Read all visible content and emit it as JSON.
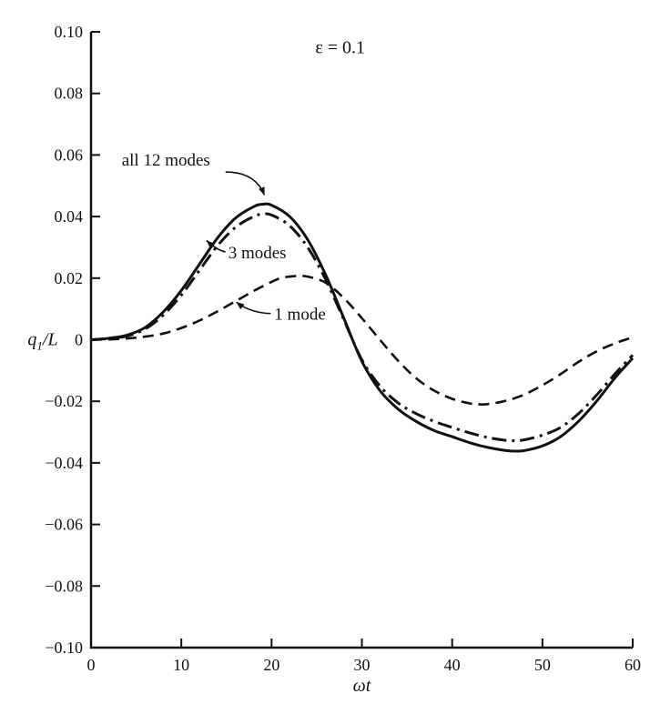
{
  "figure": {
    "description": "Generalized coordinate response q1/L versus nondimensional time for 1, 3, and 12 mode solutions"
  },
  "chart_data": {
    "type": "line",
    "title": "",
    "xlabel": "ωt",
    "ylabel": "q1/L",
    "ylabel_parts": {
      "base": "q",
      "sub": "1",
      "suffix": "/L"
    },
    "xlim": [
      0,
      60
    ],
    "ylim": [
      -0.1,
      0.1
    ],
    "grid": false,
    "legend_position": "inline-annotations",
    "xticks": {
      "values": [
        0,
        10,
        20,
        30,
        40,
        50,
        60
      ],
      "labels": [
        "0",
        "10",
        "20",
        "30",
        "40",
        "50",
        "60"
      ]
    },
    "yticks": {
      "values": [
        0.1,
        0.08,
        0.06,
        0.04,
        0.02,
        0.0,
        -0.02,
        -0.04,
        -0.06,
        -0.08,
        -0.1
      ],
      "labels": [
        "0.10",
        "0.08",
        "0.06",
        "0.04",
        "0.02",
        "0",
        "−0.02",
        "−0.04",
        "−0.06",
        "−0.08",
        "−0.10"
      ]
    },
    "series": [
      {
        "name": "all 12 modes",
        "style": "solid",
        "width": 3,
        "color": "#111111",
        "points": [
          [
            0,
            0.0
          ],
          [
            2,
            0.0005
          ],
          [
            4,
            0.0015
          ],
          [
            6,
            0.004
          ],
          [
            8,
            0.009
          ],
          [
            10,
            0.016
          ],
          [
            12,
            0.0245
          ],
          [
            14,
            0.033
          ],
          [
            16,
            0.0395
          ],
          [
            18,
            0.0432
          ],
          [
            19,
            0.044
          ],
          [
            20,
            0.0437
          ],
          [
            22,
            0.04
          ],
          [
            24,
            0.0325
          ],
          [
            26,
            0.021
          ],
          [
            28,
            0.007
          ],
          [
            30,
            -0.007
          ],
          [
            32,
            -0.0165
          ],
          [
            34,
            -0.0225
          ],
          [
            36,
            -0.0265
          ],
          [
            38,
            -0.0295
          ],
          [
            40,
            -0.0315
          ],
          [
            42,
            -0.0335
          ],
          [
            44,
            -0.035
          ],
          [
            46,
            -0.036
          ],
          [
            47,
            -0.0362
          ],
          [
            48,
            -0.036
          ],
          [
            50,
            -0.0345
          ],
          [
            52,
            -0.0315
          ],
          [
            54,
            -0.0265
          ],
          [
            56,
            -0.02
          ],
          [
            58,
            -0.0125
          ],
          [
            60,
            -0.006
          ]
        ]
      },
      {
        "name": "3 modes",
        "style": "dashdot",
        "width": 3,
        "color": "#111111",
        "points": [
          [
            0,
            0.0
          ],
          [
            2,
            0.0004
          ],
          [
            4,
            0.0012
          ],
          [
            6,
            0.0035
          ],
          [
            8,
            0.008
          ],
          [
            10,
            0.0145
          ],
          [
            12,
            0.0225
          ],
          [
            14,
            0.0305
          ],
          [
            16,
            0.0365
          ],
          [
            18,
            0.04
          ],
          [
            19,
            0.0408
          ],
          [
            20,
            0.0405
          ],
          [
            22,
            0.037
          ],
          [
            24,
            0.03
          ],
          [
            26,
            0.0195
          ],
          [
            28,
            0.0065
          ],
          [
            30,
            -0.0065
          ],
          [
            32,
            -0.015
          ],
          [
            34,
            -0.0205
          ],
          [
            36,
            -0.024
          ],
          [
            38,
            -0.0265
          ],
          [
            40,
            -0.0285
          ],
          [
            42,
            -0.0303
          ],
          [
            44,
            -0.0318
          ],
          [
            46,
            -0.0327
          ],
          [
            47,
            -0.0328
          ],
          [
            48,
            -0.0325
          ],
          [
            50,
            -0.031
          ],
          [
            52,
            -0.0285
          ],
          [
            54,
            -0.024
          ],
          [
            56,
            -0.018
          ],
          [
            58,
            -0.0112
          ],
          [
            60,
            -0.005
          ]
        ]
      },
      {
        "name": "1 mode",
        "style": "dashed",
        "width": 2.6,
        "color": "#111111",
        "points": [
          [
            0,
            0.0
          ],
          [
            2,
            0.0001
          ],
          [
            4,
            0.0004
          ],
          [
            6,
            0.001
          ],
          [
            8,
            0.002
          ],
          [
            10,
            0.0038
          ],
          [
            12,
            0.0062
          ],
          [
            14,
            0.0092
          ],
          [
            16,
            0.0125
          ],
          [
            18,
            0.0158
          ],
          [
            20,
            0.0188
          ],
          [
            21,
            0.02
          ],
          [
            22,
            0.0205
          ],
          [
            23,
            0.0207
          ],
          [
            24,
            0.0205
          ],
          [
            26,
            0.0185
          ],
          [
            28,
            0.0135
          ],
          [
            30,
            0.007
          ],
          [
            32,
            0.0
          ],
          [
            34,
            -0.0068
          ],
          [
            36,
            -0.0125
          ],
          [
            38,
            -0.0165
          ],
          [
            40,
            -0.0192
          ],
          [
            42,
            -0.0207
          ],
          [
            43,
            -0.021
          ],
          [
            44,
            -0.0209
          ],
          [
            46,
            -0.0198
          ],
          [
            48,
            -0.0178
          ],
          [
            50,
            -0.0148
          ],
          [
            52,
            -0.0112
          ],
          [
            54,
            -0.0072
          ],
          [
            56,
            -0.0038
          ],
          [
            58,
            -0.0012
          ],
          [
            60,
            0.0008
          ]
        ]
      }
    ],
    "annotations": [
      {
        "id": "epsilon-label",
        "text": "ε = 0.1",
        "x": 27.6,
        "y": 0.093,
        "anchor": "middle",
        "size": 20,
        "italic": false
      },
      {
        "id": "label-all-12-modes",
        "text": "all 12 modes",
        "x": 3.4,
        "y": 0.0565,
        "anchor": "start",
        "size": 19,
        "italic": false,
        "arrow": {
          "from": [
            14.9,
            0.0545
          ],
          "ctrl": [
            18.2,
            0.0545
          ],
          "to": [
            19.2,
            0.047
          ]
        }
      },
      {
        "id": "label-3-modes",
        "text": "3 modes",
        "x": 15.2,
        "y": 0.0265,
        "anchor": "start",
        "size": 19,
        "italic": false,
        "arrow": {
          "from": [
            14.9,
            0.0285
          ],
          "ctrl": [
            13.9,
            0.0292
          ],
          "to": [
            12.8,
            0.0322
          ]
        }
      },
      {
        "id": "label-1-mode",
        "text": "1 mode",
        "x": 20.3,
        "y": 0.0065,
        "anchor": "start",
        "size": 19,
        "italic": false,
        "arrow": {
          "from": [
            19.9,
            0.0085
          ],
          "ctrl": [
            17.6,
            0.0088
          ],
          "to": [
            16.1,
            0.0122
          ]
        }
      }
    ]
  }
}
